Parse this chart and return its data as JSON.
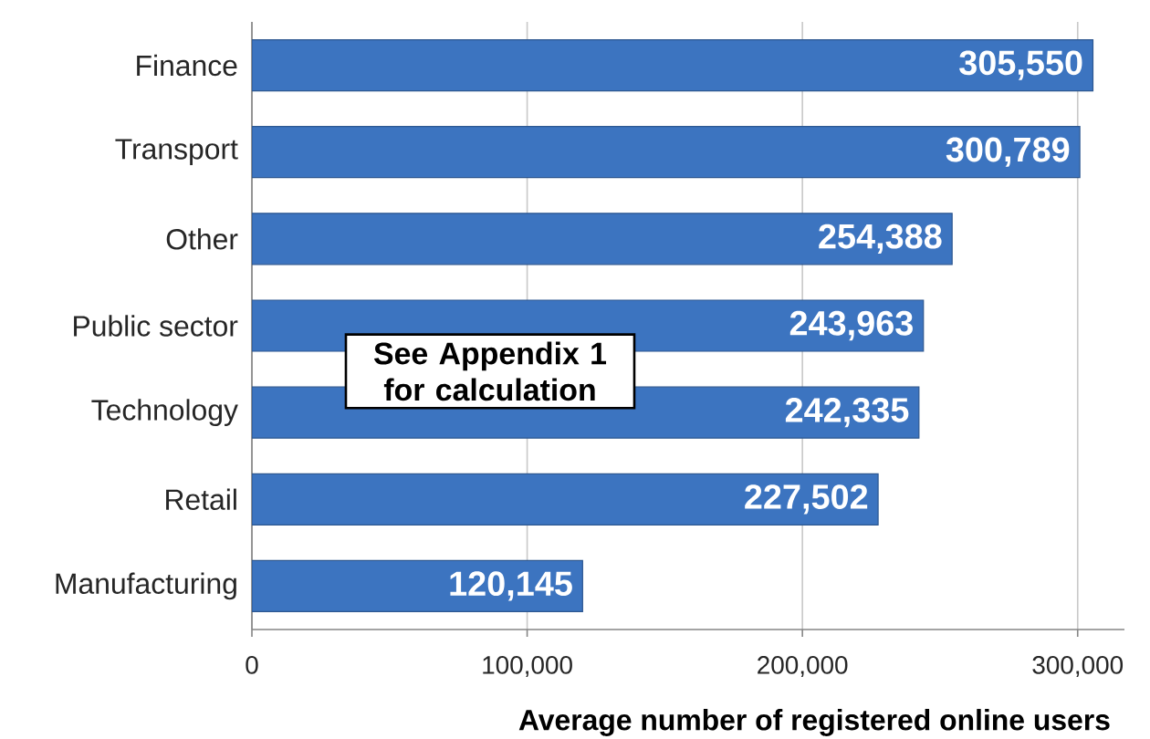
{
  "chart_data": {
    "type": "bar",
    "orientation": "horizontal",
    "xlabel": "Average number of registered online users",
    "categories": [
      "Finance",
      "Transport",
      "Other",
      "Public sector",
      "Technology",
      "Retail",
      "Manufacturing"
    ],
    "values": [
      305550,
      300789,
      254388,
      243963,
      242335,
      227502,
      120145
    ],
    "value_labels": [
      "305,550",
      "300,789",
      "254,388",
      "243,963",
      "242,335",
      "227,502",
      "120,145"
    ],
    "color": "#3c74c0",
    "xlim": [
      0,
      317000
    ],
    "xticks": [
      0,
      {
        "value": 100000,
        "label": "100,000"
      },
      {
        "value": 200000,
        "label": "200,000"
      },
      {
        "value": 300000,
        "label": "300,000"
      }
    ],
    "grid": "x",
    "annotations": [
      "See Appendix 1 for calculation"
    ]
  }
}
